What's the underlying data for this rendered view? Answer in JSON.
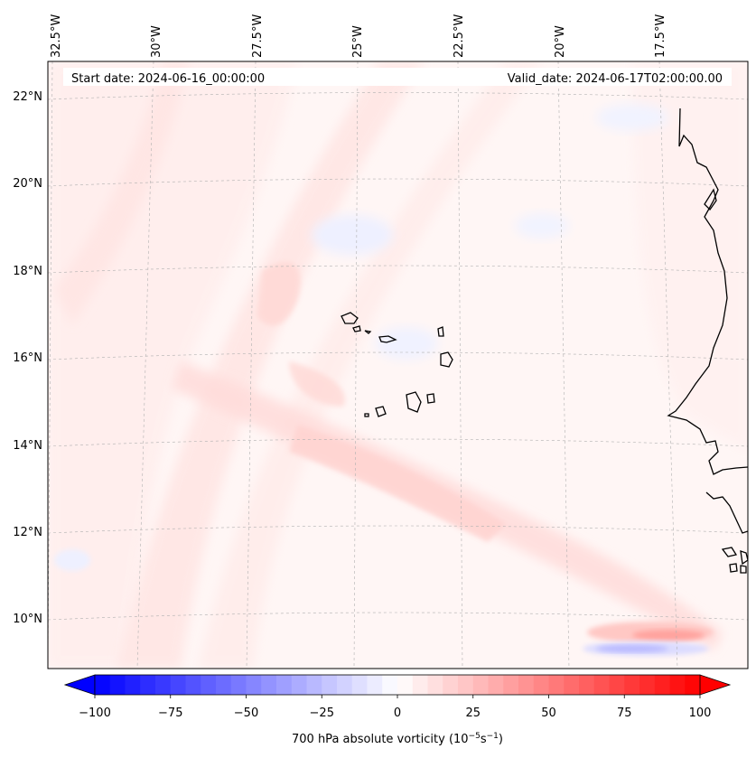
{
  "map": {
    "start_date": "Start date: 2024-06-16_00:00:00",
    "valid_date": "Valid_date: 2024-06-17T02:00:00.00",
    "lon_labels": [
      "32.5°W",
      "30°W",
      "27.5°W",
      "25°W",
      "22.5°W",
      "20°W",
      "17.5°W"
    ],
    "lat_labels": [
      "22°N",
      "20°N",
      "18°N",
      "16°N",
      "14°N",
      "12°N",
      "10°N"
    ],
    "field": "700 hPa absolute vorticity",
    "coastline_color": "#000000",
    "gridline_color": "#b0b0b0"
  },
  "colorbar": {
    "ticks": [
      "−100",
      "−75",
      "−50",
      "−25",
      "0",
      "25",
      "50",
      "75",
      "100"
    ],
    "label_main": "700 hPa absolute vorticity (10",
    "label_exp1": "−5",
    "label_mid": "s",
    "label_exp2": "−1",
    "label_end": ")",
    "min_color": "#0000ff",
    "mid_color": "#ffffff",
    "max_color": "#ff0000",
    "levels": 40,
    "extend": "both"
  }
}
